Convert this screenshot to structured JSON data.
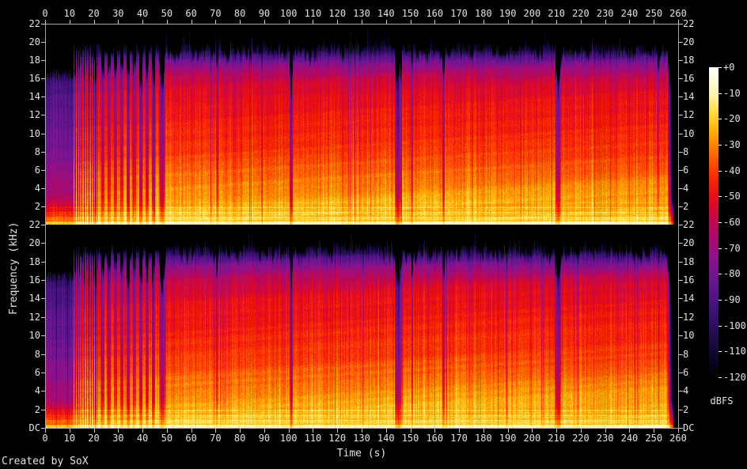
{
  "app": {
    "created_by": "Created by SoX"
  },
  "axes": {
    "time": {
      "label": "Time (s)",
      "tick_labels": [
        "0",
        "10",
        "20",
        "30",
        "40",
        "50",
        "60",
        "70",
        "80",
        "90",
        "100",
        "110",
        "120",
        "130",
        "140",
        "150",
        "160",
        "170",
        "180",
        "190",
        "200",
        "210",
        "220",
        "230",
        "240",
        "250",
        "260"
      ]
    },
    "frequency": {
      "label": "Frequency (kHz)",
      "tick_labels_khz": [
        "22",
        "20",
        "18",
        "16",
        "14",
        "12",
        "10",
        "8",
        "6",
        "4",
        "2"
      ],
      "dc_label": "DC"
    },
    "level": {
      "label": "dBFS",
      "tick_labels": [
        "+0",
        "-10",
        "-20",
        "-30",
        "-40",
        "-50",
        "-60",
        "-70",
        "-80",
        "-90",
        "-100",
        "-110",
        "-120"
      ]
    }
  },
  "chart_data": {
    "type": "heatmap",
    "subtype": "stereo-audio-spectrogram",
    "tool": "SoX",
    "xlabel": "Time (s)",
    "ylabel": "Frequency (kHz)",
    "zlabel": "dBFS",
    "x_range_s": [
      0,
      260
    ],
    "x_tick_step_s": 10,
    "y_range_khz": [
      0,
      22
    ],
    "y_tick_step_khz": 2,
    "z_range_dbfs": [
      -120,
      0
    ],
    "z_tick_step_db": 10,
    "channels": 2,
    "legend_position": "right-colorbar",
    "grid": false,
    "palette_stops": [
      {
        "db": -120,
        "color": "#000000"
      },
      {
        "db": -113,
        "color": "#0b0524"
      },
      {
        "db": -106,
        "color": "#1c0b44"
      },
      {
        "db": -98,
        "color": "#311066"
      },
      {
        "db": -90,
        "color": "#4b1383"
      },
      {
        "db": -82,
        "color": "#6a1590"
      },
      {
        "db": -74,
        "color": "#8a128b"
      },
      {
        "db": -66,
        "color": "#a80a6e"
      },
      {
        "db": -58,
        "color": "#c80745"
      },
      {
        "db": -50,
        "color": "#e80c16"
      },
      {
        "db": -42,
        "color": "#fa2c00"
      },
      {
        "db": -34,
        "color": "#ff6400"
      },
      {
        "db": -26,
        "color": "#ffa400"
      },
      {
        "db": -18,
        "color": "#ffd938"
      },
      {
        "db": -10,
        "color": "#fff5b2"
      },
      {
        "db": 0,
        "color": "#ffffff"
      }
    ],
    "frequency_profile_db": [
      [
        0,
        -15
      ],
      [
        0.5,
        -18
      ],
      [
        1.5,
        -22
      ],
      [
        3,
        -27
      ],
      [
        5,
        -32
      ],
      [
        8,
        -41
      ],
      [
        11,
        -46
      ],
      [
        14,
        -51
      ],
      [
        15.5,
        -56
      ],
      [
        16.5,
        -63
      ],
      [
        17.5,
        -74
      ],
      [
        18.5,
        -90
      ],
      [
        19.2,
        -106
      ],
      [
        20,
        -116
      ],
      [
        22,
        -120
      ]
    ],
    "top_edge_khz": {
      "base": 18.8,
      "jitter": 1.1
    },
    "time_features": {
      "intro": {
        "t": [
          0,
          11.3
        ],
        "attenuation_db": -38,
        "top_edge_khz": 16.2
      },
      "stripe_sections": [
        {
          "t": [
            11.3,
            21.5
          ],
          "period_s": 0.95,
          "duty": 0.5,
          "off_attenuation_db": -32
        },
        {
          "t": [
            21.5,
            46.3
          ],
          "period_s": 2.6,
          "duty": 0.55,
          "off_attenuation_db": -26
        }
      ],
      "quiet_gaps": [
        {
          "t": 47.8,
          "width_s": 2.4,
          "attenuation_db": -36
        },
        {
          "t": 70.4,
          "width_s": 0.9,
          "attenuation_db": -22
        },
        {
          "t": 100.9,
          "width_s": 1.1,
          "attenuation_db": -44
        },
        {
          "t": 144.9,
          "width_s": 2.9,
          "attenuation_db": -40
        },
        {
          "t": 150.6,
          "width_s": 0.8,
          "attenuation_db": -20
        },
        {
          "t": 163.5,
          "width_s": 1.2,
          "attenuation_db": -24
        },
        {
          "t": 210.6,
          "width_s": 2.2,
          "attenuation_db": -36
        },
        {
          "t": 251.9,
          "width_s": 0.7,
          "attenuation_db": -18
        }
      ],
      "outro": {
        "fade_start_s": 255.6,
        "silence_start_s": 258.2
      }
    }
  }
}
